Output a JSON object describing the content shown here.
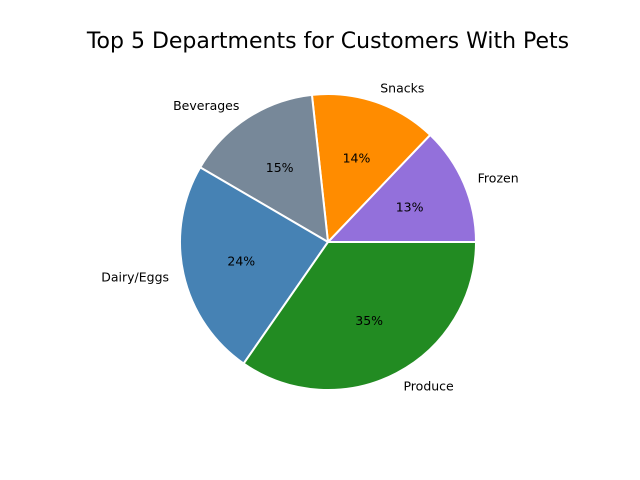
{
  "chart_data": {
    "type": "pie",
    "title": "Top 5 Departments for Customers With Pets",
    "start_angle_deg": 0,
    "direction": "counterclockwise",
    "slices": [
      {
        "label": "Frozen",
        "percent": 13,
        "color": "#9370DB"
      },
      {
        "label": "Snacks",
        "percent": 14,
        "color": "#FF8C00"
      },
      {
        "label": "Beverages",
        "percent": 15,
        "color": "#778899"
      },
      {
        "label": "Dairy/Eggs",
        "percent": 24,
        "color": "#4682B4"
      },
      {
        "label": "Produce",
        "percent": 35,
        "color": "#228B22"
      }
    ],
    "legend": "none"
  }
}
